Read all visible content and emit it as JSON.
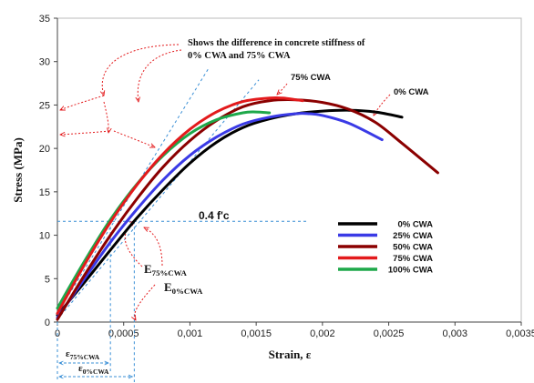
{
  "chart_data": {
    "type": "line",
    "xlabel": "Strain, ε",
    "ylabel": "Stress  (MPa)",
    "xlim": [
      0,
      0.0035
    ],
    "ylim": [
      0,
      35
    ],
    "x_ticks": [
      "0",
      "0,0005",
      "0,001",
      "0,0015",
      "0,002",
      "0,0025",
      "0,003",
      "0,0035"
    ],
    "x_tick_values": [
      0,
      0.0005,
      0.001,
      0.0015,
      0.002,
      0.0025,
      0.003,
      0.0035
    ],
    "y_ticks": [
      "0",
      "5",
      "10",
      "15",
      "20",
      "25",
      "30",
      "35"
    ],
    "y_tick_values": [
      0,
      5,
      10,
      15,
      20,
      25,
      30,
      35
    ],
    "grid": false,
    "legend_position": "right-middle",
    "series": [
      {
        "name": "0% CWA",
        "color": "#000000",
        "points": [
          [
            0,
            0.8
          ],
          [
            0.0002,
            4.5
          ],
          [
            0.0004,
            8.3
          ],
          [
            0.0006,
            12.0
          ],
          [
            0.0008,
            15.3
          ],
          [
            0.001,
            18.3
          ],
          [
            0.0012,
            20.7
          ],
          [
            0.0014,
            22.4
          ],
          [
            0.0016,
            23.4
          ],
          [
            0.0018,
            24.0
          ],
          [
            0.002,
            24.3
          ],
          [
            0.0022,
            24.4
          ],
          [
            0.0024,
            24.2
          ],
          [
            0.0026,
            23.6
          ]
        ]
      },
      {
        "name": "25% CWA",
        "color": "#3a3ae6",
        "points": [
          [
            0,
            0.5
          ],
          [
            0.0002,
            4.9
          ],
          [
            0.0004,
            9.2
          ],
          [
            0.0006,
            13.0
          ],
          [
            0.0008,
            16.4
          ],
          [
            0.001,
            19.2
          ],
          [
            0.0012,
            21.3
          ],
          [
            0.0014,
            22.8
          ],
          [
            0.0016,
            23.6
          ],
          [
            0.0018,
            24.0
          ],
          [
            0.0019,
            24.0
          ],
          [
            0.002,
            23.8
          ],
          [
            0.0022,
            22.9
          ],
          [
            0.00245,
            21.0
          ]
        ]
      },
      {
        "name": "50% CWA",
        "color": "#8b0000",
        "points": [
          [
            0,
            0.3
          ],
          [
            0.0002,
            5.3
          ],
          [
            0.0004,
            10.0
          ],
          [
            0.0006,
            14.2
          ],
          [
            0.0008,
            17.9
          ],
          [
            0.001,
            20.9
          ],
          [
            0.0012,
            23.2
          ],
          [
            0.0014,
            24.8
          ],
          [
            0.0016,
            25.5
          ],
          [
            0.0018,
            25.6
          ],
          [
            0.002,
            25.3
          ],
          [
            0.0022,
            24.5
          ],
          [
            0.0024,
            23.0
          ],
          [
            0.0026,
            20.6
          ],
          [
            0.00287,
            17.2
          ]
        ]
      },
      {
        "name": "75% CWA",
        "color": "#e31a1c",
        "points": [
          [
            0,
            1.0
          ],
          [
            0.0002,
            6.5
          ],
          [
            0.0004,
            11.5
          ],
          [
            0.0006,
            15.8
          ],
          [
            0.0008,
            19.4
          ],
          [
            0.001,
            22.2
          ],
          [
            0.0012,
            24.2
          ],
          [
            0.0014,
            25.4
          ],
          [
            0.0016,
            25.8
          ],
          [
            0.0017,
            25.8
          ],
          [
            0.0018,
            25.6
          ],
          [
            0.00185,
            25.5
          ]
        ]
      },
      {
        "name": "100% CWA",
        "color": "#1ea84a",
        "points": [
          [
            0,
            1.6
          ],
          [
            0.0002,
            6.9
          ],
          [
            0.0004,
            11.8
          ],
          [
            0.0006,
            15.9
          ],
          [
            0.0008,
            19.2
          ],
          [
            0.001,
            21.7
          ],
          [
            0.0012,
            23.3
          ],
          [
            0.0014,
            24.1
          ],
          [
            0.0015,
            24.2
          ],
          [
            0.0016,
            24.1
          ]
        ]
      }
    ],
    "annotations": {
      "stiffness_note_line1": "Shows the difference in concrete stiffness of",
      "stiffness_note_line2": "0% CWA and 75% CWA",
      "label_75": "75% CWA",
      "label_0": "0% CWA",
      "fc_label": "0.4 f'c",
      "fc_value": 11.6,
      "e75_main": "E",
      "e75_sub": "75%CWA",
      "e0_main": "E",
      "e0_sub": "0%CWA",
      "eps75_main": "ε",
      "eps75_sub": "75%CWA",
      "eps0_main": "ε",
      "eps0_sub": "0%CWA",
      "eps75_value": 0.0004,
      "eps0_value": 0.00058
    }
  }
}
